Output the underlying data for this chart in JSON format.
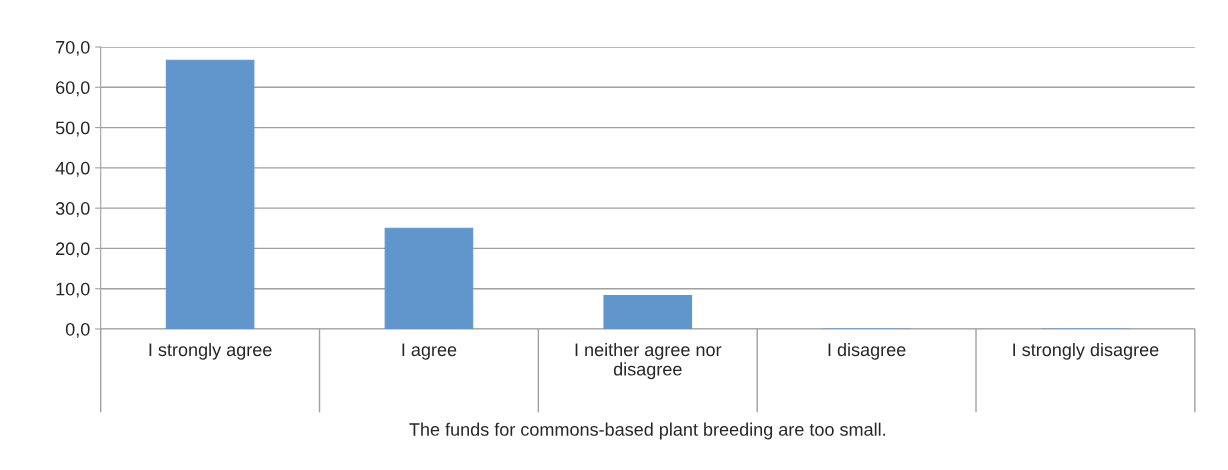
{
  "chart_data": {
    "type": "bar",
    "categories": [
      "I strongly agree",
      "I agree",
      "I neither agree nor\ndisagree",
      "I disagree",
      "I strongly disagree"
    ],
    "values": [
      66.7,
      25.0,
      8.3,
      0,
      0
    ],
    "color": "#6096cc",
    "xlabel": "The funds for commons-based plant breeding are too small.",
    "ylim": [
      0,
      70
    ],
    "yticks": [
      {
        "value": 0,
        "label": "0,0"
      },
      {
        "value": 10,
        "label": "10,0"
      },
      {
        "value": 20,
        "label": "20,0"
      },
      {
        "value": 30,
        "label": "30,0"
      },
      {
        "value": 40,
        "label": "40,0"
      },
      {
        "value": 50,
        "label": "50,0"
      },
      {
        "value": 60,
        "label": "60,0"
      },
      {
        "value": 70,
        "label": "70,0"
      }
    ],
    "grid": "y"
  }
}
